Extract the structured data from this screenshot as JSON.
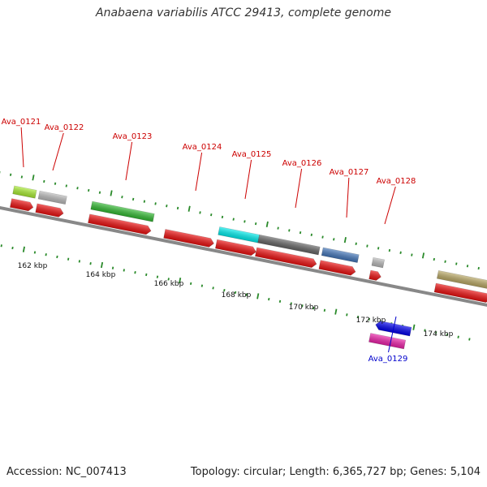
{
  "title": "Anabaena variabilis ATCC 29413, complete genome",
  "footer": {
    "accession": "Accession: NC_007413",
    "summary": "Topology: circular; Length: 6,365,727 bp; Genes: 5,104"
  },
  "axis": {
    "ticks": [
      {
        "label": "162 kbp"
      },
      {
        "label": "164 kbp"
      },
      {
        "label": "166 kbp"
      },
      {
        "label": "168 kbp"
      },
      {
        "label": "170 kbp"
      },
      {
        "label": "172 kbp"
      },
      {
        "label": "174 kbp"
      }
    ]
  },
  "colors": {
    "gene_label": "#cc0000",
    "gene_label_reverse": "#0000cc",
    "cds": "#ee1111",
    "backbone": "#888888",
    "tick": "#2a8a2a"
  },
  "gene_labels": [
    {
      "text": "Ava_0121",
      "strand": "forward"
    },
    {
      "text": "Ava_0122",
      "strand": "forward"
    },
    {
      "text": "Ava_0123",
      "strand": "forward"
    },
    {
      "text": "Ava_0124",
      "strand": "forward"
    },
    {
      "text": "Ava_0125",
      "strand": "forward"
    },
    {
      "text": "Ava_0126",
      "strand": "forward"
    },
    {
      "text": "Ava_0127",
      "strand": "forward"
    },
    {
      "text": "Ava_0128",
      "strand": "forward"
    },
    {
      "text": "Ava_0129",
      "strand": "reverse"
    }
  ],
  "feature_colors": {
    "cog": [
      "#aaee33",
      "#bbbbbb",
      "#33bb33",
      "#00eeee",
      "#666666",
      "#4477bb",
      "#bbbbbb",
      "#bbaa66",
      "#0000ee",
      "#ee22aa"
    ]
  }
}
